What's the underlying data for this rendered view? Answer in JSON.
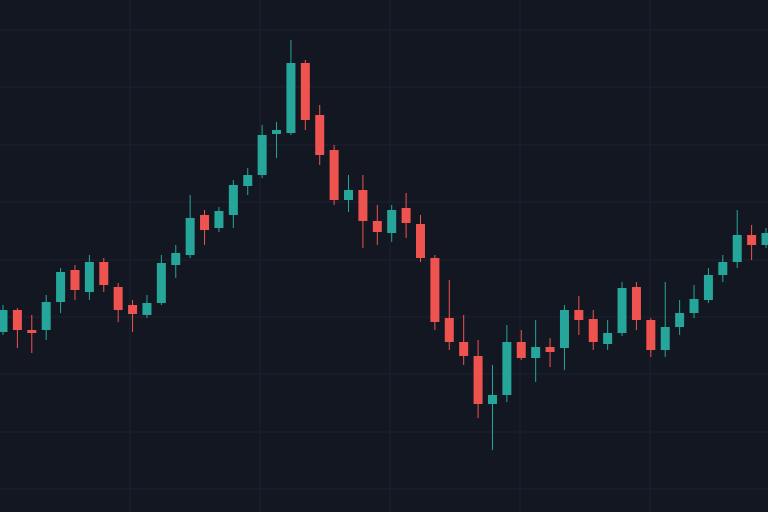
{
  "chart_data": {
    "type": "candlestick",
    "up_color": "#26a69a",
    "down_color": "#ef5350",
    "ylim": [
      0,
      512
    ],
    "open": [
      180,
      202,
      182,
      182,
      210,
      242,
      220,
      250,
      225,
      207,
      197,
      209,
      247,
      257,
      297,
      284,
      297,
      326,
      337,
      378,
      379,
      449,
      397,
      362,
      312,
      322,
      291,
      279,
      304,
      288,
      254,
      194,
      170,
      156,
      108,
      117,
      170,
      154,
      165,
      164,
      202,
      193,
      168,
      179,
      225,
      192,
      162,
      185,
      199,
      212,
      237,
      250,
      277,
      267
    ],
    "high": [
      207,
      204,
      197,
      217,
      244,
      247,
      257,
      254,
      229,
      212,
      217,
      257,
      267,
      317,
      302,
      305,
      332,
      344,
      387,
      390,
      472,
      452,
      407,
      367,
      337,
      337,
      307,
      307,
      319,
      297,
      257,
      232,
      197,
      172,
      147,
      187,
      182,
      192,
      174,
      207,
      216,
      202,
      192,
      230,
      230,
      194,
      230,
      212,
      227,
      244,
      257,
      302,
      287,
      284
    ],
    "low": [
      177,
      164,
      159,
      172,
      199,
      212,
      212,
      220,
      190,
      180,
      194,
      207,
      234,
      254,
      267,
      280,
      284,
      317,
      334,
      354,
      377,
      382,
      347,
      307,
      300,
      264,
      267,
      270,
      274,
      250,
      182,
      162,
      147,
      94,
      62,
      110,
      152,
      130,
      145,
      142,
      177,
      162,
      162,
      176,
      182,
      155,
      155,
      177,
      194,
      209,
      230,
      244,
      252,
      264
    ],
    "close": [
      202,
      182,
      179,
      210,
      240,
      222,
      250,
      227,
      202,
      198,
      209,
      249,
      259,
      294,
      282,
      301,
      327,
      337,
      377,
      382,
      449,
      392,
      357,
      312,
      322,
      291,
      280,
      302,
      289,
      254,
      190,
      170,
      156,
      108,
      117,
      170,
      154,
      165,
      160,
      202,
      192,
      170,
      179,
      224,
      192,
      162,
      185,
      199,
      213,
      237,
      250,
      277,
      267,
      279
    ]
  }
}
